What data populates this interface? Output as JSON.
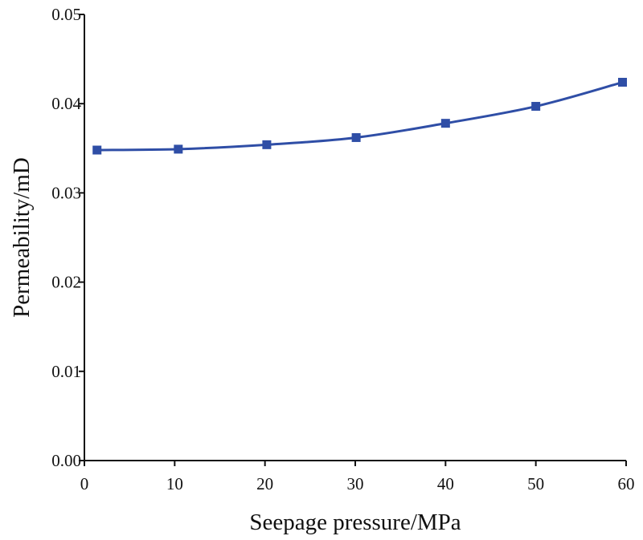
{
  "chart_data": {
    "type": "line",
    "title": "",
    "xlabel": "Seepage pressure/MPa",
    "ylabel": "Permeability/mD",
    "xlim": [
      0,
      60
    ],
    "ylim": [
      0,
      0.05
    ],
    "xticks": [
      0,
      10,
      20,
      30,
      40,
      50,
      60
    ],
    "xtick_labels": [
      "0",
      "10",
      "20",
      "30",
      "40",
      "50",
      "60"
    ],
    "yticks": [
      0,
      0.01,
      0.02,
      0.03,
      0.04,
      0.05
    ],
    "ytick_labels": [
      "0.00",
      "0.01",
      "0.02",
      "0.03",
      "0.04",
      "0.05"
    ],
    "grid": false,
    "legend": "none",
    "series": [
      {
        "name": "Permeability",
        "color": "#2f4ea6",
        "marker": "square",
        "x": [
          1.4,
          10.4,
          20.2,
          30.1,
          40.0,
          50.0,
          59.6
        ],
        "y": [
          0.0348,
          0.0349,
          0.0354,
          0.0362,
          0.0378,
          0.0397,
          0.0424
        ]
      }
    ]
  }
}
